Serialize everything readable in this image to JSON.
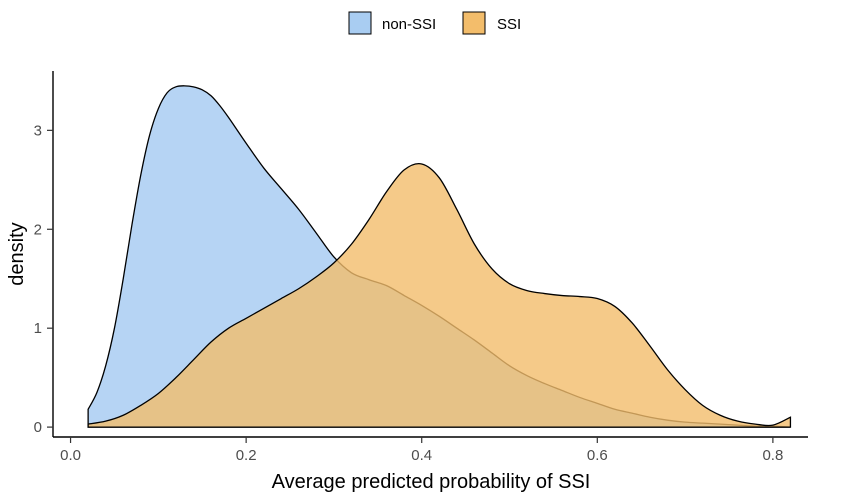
{
  "chart_data": {
    "type": "area",
    "title": "",
    "xlabel": "Average predicted probability of SSI",
    "ylabel": "density",
    "xlim": [
      -0.02,
      0.84
    ],
    "ylim": [
      -0.1,
      3.6
    ],
    "x_ticks": [
      {
        "value": 0.0,
        "label": "0.0"
      },
      {
        "value": 0.2,
        "label": "0.2"
      },
      {
        "value": 0.4,
        "label": "0.4"
      },
      {
        "value": 0.6,
        "label": "0.6"
      },
      {
        "value": 0.8,
        "label": "0.8"
      }
    ],
    "y_ticks": [
      {
        "value": 0,
        "label": "0"
      },
      {
        "value": 1,
        "label": "1"
      },
      {
        "value": 2,
        "label": "2"
      },
      {
        "value": 3,
        "label": "3"
      }
    ],
    "grid": false,
    "legend": {
      "position": "top",
      "entries": [
        {
          "name": "non-SSI",
          "color": "#a9cdf2"
        },
        {
          "name": "SSI",
          "color": "#f3bd6b"
        }
      ]
    },
    "series": [
      {
        "name": "non-SSI",
        "fill": "#a9cdf2",
        "opacity": 0.85,
        "x": [
          0.02,
          0.03,
          0.04,
          0.05,
          0.06,
          0.07,
          0.08,
          0.09,
          0.1,
          0.11,
          0.12,
          0.13,
          0.14,
          0.15,
          0.16,
          0.17,
          0.18,
          0.19,
          0.2,
          0.22,
          0.24,
          0.26,
          0.28,
          0.3,
          0.32,
          0.34,
          0.36,
          0.38,
          0.4,
          0.42,
          0.44,
          0.46,
          0.48,
          0.5,
          0.52,
          0.54,
          0.56,
          0.58,
          0.6,
          0.62,
          0.64,
          0.66,
          0.68,
          0.7,
          0.72,
          0.74,
          0.76,
          0.78,
          0.8,
          0.82
        ],
        "y": [
          0.18,
          0.35,
          0.62,
          1.0,
          1.5,
          2.05,
          2.55,
          2.95,
          3.22,
          3.38,
          3.44,
          3.45,
          3.44,
          3.41,
          3.35,
          3.25,
          3.13,
          3.0,
          2.87,
          2.62,
          2.41,
          2.2,
          1.96,
          1.72,
          1.56,
          1.49,
          1.43,
          1.33,
          1.23,
          1.12,
          1.0,
          0.88,
          0.75,
          0.62,
          0.52,
          0.44,
          0.37,
          0.3,
          0.24,
          0.18,
          0.14,
          0.1,
          0.07,
          0.05,
          0.04,
          0.03,
          0.02,
          0.01,
          0.01,
          0.0
        ]
      },
      {
        "name": "SSI",
        "fill": "#f3bd6b",
        "opacity": 0.8,
        "x": [
          0.02,
          0.04,
          0.06,
          0.08,
          0.1,
          0.12,
          0.14,
          0.16,
          0.18,
          0.2,
          0.22,
          0.24,
          0.26,
          0.28,
          0.3,
          0.32,
          0.34,
          0.36,
          0.38,
          0.4,
          0.42,
          0.44,
          0.46,
          0.48,
          0.5,
          0.52,
          0.54,
          0.56,
          0.58,
          0.6,
          0.62,
          0.64,
          0.66,
          0.68,
          0.7,
          0.72,
          0.74,
          0.76,
          0.78,
          0.8,
          0.82
        ],
        "y": [
          0.03,
          0.06,
          0.12,
          0.22,
          0.34,
          0.5,
          0.68,
          0.86,
          1.0,
          1.1,
          1.2,
          1.3,
          1.4,
          1.52,
          1.66,
          1.85,
          2.1,
          2.38,
          2.6,
          2.66,
          2.52,
          2.2,
          1.85,
          1.6,
          1.45,
          1.38,
          1.35,
          1.33,
          1.32,
          1.3,
          1.22,
          1.05,
          0.82,
          0.58,
          0.38,
          0.22,
          0.12,
          0.06,
          0.03,
          0.02,
          0.1
        ]
      }
    ]
  }
}
